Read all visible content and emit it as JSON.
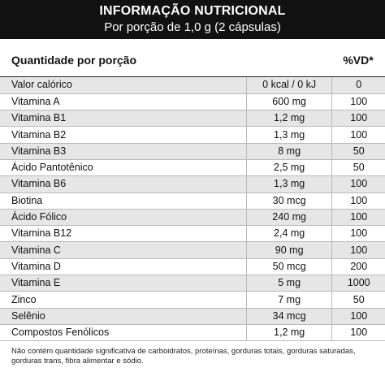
{
  "header": {
    "title": "INFORMAÇÃO NUTRICIONAL",
    "subtitle": "Por porção de 1,0 g (2 cápsulas)"
  },
  "columns": {
    "portion": "Quantidade por porção",
    "vd": "%VD*"
  },
  "rows": [
    {
      "name": "Valor calórico",
      "qty": "0 kcal / 0 kJ",
      "vd": "0"
    },
    {
      "name": "Vitamina A",
      "qty": "600 mg",
      "vd": "100"
    },
    {
      "name": "Vitamina B1",
      "qty": "1,2 mg",
      "vd": "100"
    },
    {
      "name": "Vitamina B2",
      "qty": "1,3 mg",
      "vd": "100"
    },
    {
      "name": "Vitamina B3",
      "qty": "8 mg",
      "vd": "50"
    },
    {
      "name": "Ácido Pantotênico",
      "qty": "2,5 mg",
      "vd": "50"
    },
    {
      "name": "Vitamina B6",
      "qty": "1,3 mg",
      "vd": "100"
    },
    {
      "name": "Biotina",
      "qty": "30 mcg",
      "vd": "100"
    },
    {
      "name": "Ácido Fólico",
      "qty": "240 mg",
      "vd": "100"
    },
    {
      "name": "Vitamina B12",
      "qty": "2,4 mg",
      "vd": "100"
    },
    {
      "name": "Vitamina C",
      "qty": "90 mg",
      "vd": "100"
    },
    {
      "name": "Vitamina D",
      "qty": "50 mcg",
      "vd": "200"
    },
    {
      "name": "Vitamina E",
      "qty": "5 mg",
      "vd": "1000"
    },
    {
      "name": "Zinco",
      "qty": "7 mg",
      "vd": "50"
    },
    {
      "name": "Selênio",
      "qty": "34 mcg",
      "vd": "100"
    },
    {
      "name": "Compostos Fenólicos",
      "qty": "1,2 mg",
      "vd": "100"
    }
  ],
  "footnote": "Não contém quantidade significativa de carboidratos, proteínas, gorduras totais, gorduras saturadas, gorduras trans, fibra alimentar e sódio."
}
